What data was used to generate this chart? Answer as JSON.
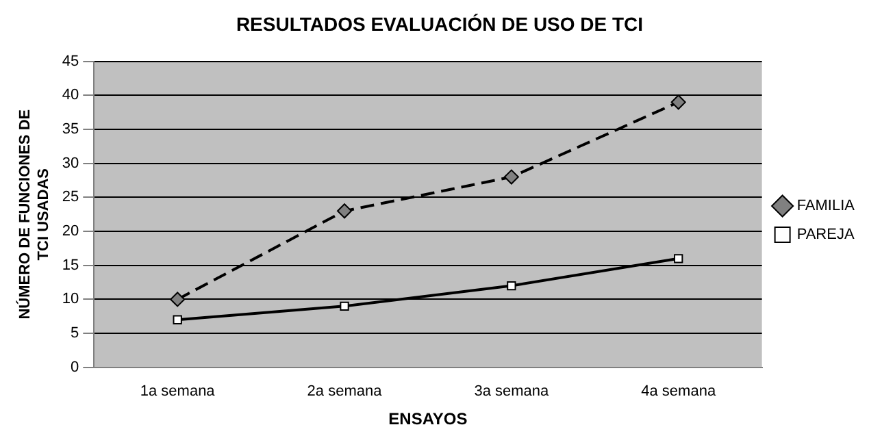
{
  "chart_data": {
    "type": "line",
    "title": "RESULTADOS EVALUACIÓN DE USO DE TCI",
    "xlabel": "ENSAYOS",
    "ylabel": "NÚMERO DE FUNCIONES DE TCI USADAS",
    "categories": [
      "1a semana",
      "2a semana",
      "3a semana",
      "4a semana"
    ],
    "series": [
      {
        "name": "FAMILIA",
        "color": "#000000",
        "values": [
          10,
          23,
          28,
          39
        ],
        "marker": "diamond",
        "line_style": "dashed"
      },
      {
        "name": "PAREJA",
        "color": "#000000",
        "values": [
          7,
          9,
          12,
          16
        ],
        "marker": "square",
        "line_style": "solid"
      }
    ],
    "ylim": [
      0,
      45
    ],
    "yticks": [
      0,
      5,
      10,
      15,
      20,
      25,
      30,
      35,
      40,
      45
    ],
    "grid": "y",
    "legend": "right"
  }
}
